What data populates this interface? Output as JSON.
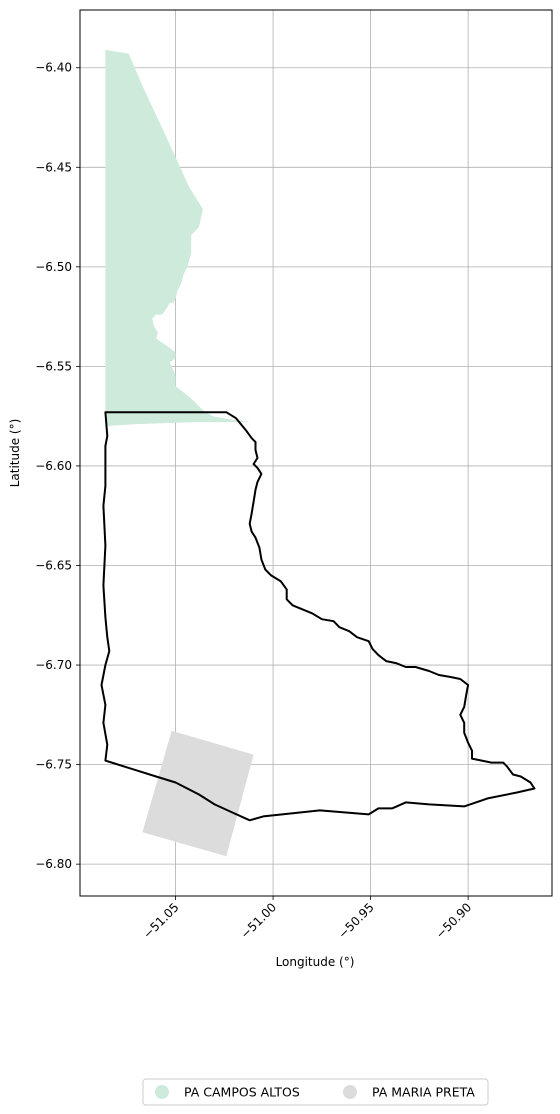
{
  "chart_data": {
    "type": "map",
    "xlabel": "Longitude (°)",
    "ylabel": "Latitude (°)",
    "xlim": [
      -51.099,
      -50.857
    ],
    "ylim": [
      -6.816,
      -6.371
    ],
    "grid": true,
    "legend_position": "bottom-center",
    "x_ticks": [
      {
        "value": -51.05,
        "label": "−51.05"
      },
      {
        "value": -51.0,
        "label": "−51.00"
      },
      {
        "value": -50.95,
        "label": "−50.95"
      },
      {
        "value": -50.9,
        "label": "−50.90"
      }
    ],
    "y_ticks": [
      {
        "value": -6.4,
        "label": "−6.40"
      },
      {
        "value": -6.45,
        "label": "−6.45"
      },
      {
        "value": -6.5,
        "label": "−6.50"
      },
      {
        "value": -6.55,
        "label": "−6.55"
      },
      {
        "value": -6.6,
        "label": "−6.60"
      },
      {
        "value": -6.65,
        "label": "−6.65"
      },
      {
        "value": -6.7,
        "label": "−6.70"
      },
      {
        "value": -6.75,
        "label": "−6.75"
      },
      {
        "value": -6.8,
        "label": "−6.80"
      }
    ],
    "areas": [
      {
        "name": "PA CAMPOS ALTOS",
        "color": "#cdeadb",
        "coords": [
          [
            -51.086,
            -6.391
          ],
          [
            -51.08,
            -6.392
          ],
          [
            -51.074,
            -6.393
          ],
          [
            -51.067,
            -6.409
          ],
          [
            -51.058,
            -6.428
          ],
          [
            -51.05,
            -6.445
          ],
          [
            -51.043,
            -6.46
          ],
          [
            -51.036,
            -6.471
          ],
          [
            -51.038,
            -6.48
          ],
          [
            -51.042,
            -6.484
          ],
          [
            -51.042,
            -6.493
          ],
          [
            -51.044,
            -6.5
          ],
          [
            -51.046,
            -6.504
          ],
          [
            -51.047,
            -6.508
          ],
          [
            -51.049,
            -6.512
          ],
          [
            -51.05,
            -6.516
          ],
          [
            -51.051,
            -6.518
          ],
          [
            -51.053,
            -6.518
          ],
          [
            -51.054,
            -6.52
          ],
          [
            -51.057,
            -6.524
          ],
          [
            -51.06,
            -6.524
          ],
          [
            -51.062,
            -6.526
          ],
          [
            -51.061,
            -6.53
          ],
          [
            -51.059,
            -6.533
          ],
          [
            -51.06,
            -6.536
          ],
          [
            -51.057,
            -6.538
          ],
          [
            -51.054,
            -6.54
          ],
          [
            -51.05,
            -6.543
          ],
          [
            -51.05,
            -6.546
          ],
          [
            -51.053,
            -6.548
          ],
          [
            -51.052,
            -6.55
          ],
          [
            -51.05,
            -6.555
          ],
          [
            -51.05,
            -6.56
          ],
          [
            -51.046,
            -6.563
          ],
          [
            -51.041,
            -6.567
          ],
          [
            -51.036,
            -6.572
          ],
          [
            -51.031,
            -6.575
          ],
          [
            -51.02,
            -6.577
          ],
          [
            -51.011,
            -6.578
          ],
          [
            -51.04,
            -6.578
          ],
          [
            -51.07,
            -6.579
          ],
          [
            -51.086,
            -6.58
          ]
        ]
      },
      {
        "name": "PA MARIA PRETA",
        "color": "#dcdcdc",
        "coords": [
          [
            -51.052,
            -6.733
          ],
          [
            -51.01,
            -6.745
          ],
          [
            -51.024,
            -6.796
          ],
          [
            -51.067,
            -6.784
          ]
        ]
      }
    ],
    "outline": {
      "color": "#000000",
      "coords": [
        [
          -51.086,
          -6.573
        ],
        [
          -51.054,
          -6.573
        ],
        [
          -51.024,
          -6.573
        ],
        [
          -51.019,
          -6.576
        ],
        [
          -51.014,
          -6.582
        ],
        [
          -51.011,
          -6.586
        ],
        [
          -51.009,
          -6.588
        ],
        [
          -51.009,
          -6.592
        ],
        [
          -51.008,
          -6.596
        ],
        [
          -51.01,
          -6.599
        ],
        [
          -51.008,
          -6.601
        ],
        [
          -51.006,
          -6.604
        ],
        [
          -51.008,
          -6.608
        ],
        [
          -51.009,
          -6.612
        ],
        [
          -51.01,
          -6.618
        ],
        [
          -51.011,
          -6.624
        ],
        [
          -51.012,
          -6.629
        ],
        [
          -51.011,
          -6.633
        ],
        [
          -51.009,
          -6.636
        ],
        [
          -51.007,
          -6.641
        ],
        [
          -51.006,
          -6.647
        ],
        [
          -51.004,
          -6.652
        ],
        [
          -51.001,
          -6.655
        ],
        [
          -50.996,
          -6.658
        ],
        [
          -50.993,
          -6.662
        ],
        [
          -50.993,
          -6.667
        ],
        [
          -50.99,
          -6.67
        ],
        [
          -50.985,
          -6.672
        ],
        [
          -50.98,
          -6.674
        ],
        [
          -50.975,
          -6.677
        ],
        [
          -50.969,
          -6.678
        ],
        [
          -50.966,
          -6.681
        ],
        [
          -50.961,
          -6.683
        ],
        [
          -50.957,
          -6.686
        ],
        [
          -50.951,
          -6.688
        ],
        [
          -50.949,
          -6.692
        ],
        [
          -50.946,
          -6.695
        ],
        [
          -50.942,
          -6.698
        ],
        [
          -50.937,
          -6.699
        ],
        [
          -50.932,
          -6.701
        ],
        [
          -50.927,
          -6.701
        ],
        [
          -50.92,
          -6.703
        ],
        [
          -50.915,
          -6.705
        ],
        [
          -50.909,
          -6.706
        ],
        [
          -50.904,
          -6.707
        ],
        [
          -50.9,
          -6.71
        ],
        [
          -50.901,
          -6.715
        ],
        [
          -50.902,
          -6.721
        ],
        [
          -50.904,
          -6.725
        ],
        [
          -50.902,
          -6.729
        ],
        [
          -50.902,
          -6.734
        ],
        [
          -50.9,
          -6.739
        ],
        [
          -50.898,
          -6.743
        ],
        [
          -50.898,
          -6.747
        ],
        [
          -50.893,
          -6.748
        ],
        [
          -50.888,
          -6.749
        ],
        [
          -50.882,
          -6.749
        ],
        [
          -50.88,
          -6.751
        ],
        [
          -50.877,
          -6.755
        ],
        [
          -50.873,
          -6.756
        ],
        [
          -50.868,
          -6.759
        ],
        [
          -50.866,
          -6.762
        ],
        [
          -50.875,
          -6.764
        ],
        [
          -50.89,
          -6.767
        ],
        [
          -50.902,
          -6.771
        ],
        [
          -50.92,
          -6.77
        ],
        [
          -50.932,
          -6.769
        ],
        [
          -50.939,
          -6.772
        ],
        [
          -50.946,
          -6.772
        ],
        [
          -50.951,
          -6.775
        ],
        [
          -50.976,
          -6.773
        ],
        [
          -51.005,
          -6.776
        ],
        [
          -51.012,
          -6.778
        ],
        [
          -51.021,
          -6.774
        ],
        [
          -51.03,
          -6.77
        ],
        [
          -51.038,
          -6.765
        ],
        [
          -51.05,
          -6.759
        ],
        [
          -51.06,
          -6.756
        ],
        [
          -51.086,
          -6.748
        ],
        [
          -51.085,
          -6.74
        ],
        [
          -51.087,
          -6.729
        ],
        [
          -51.086,
          -6.72
        ],
        [
          -51.088,
          -6.71
        ],
        [
          -51.086,
          -6.7
        ],
        [
          -51.084,
          -6.693
        ],
        [
          -51.085,
          -6.686
        ],
        [
          -51.086,
          -6.676
        ],
        [
          -51.087,
          -6.66
        ],
        [
          -51.086,
          -6.64
        ],
        [
          -51.087,
          -6.62
        ],
        [
          -51.086,
          -6.61
        ],
        [
          -51.086,
          -6.59
        ],
        [
          -51.085,
          -6.585
        ],
        [
          -51.086,
          -6.573
        ]
      ]
    }
  },
  "legend": {
    "items": [
      {
        "label": "PA CAMPOS ALTOS",
        "color": "#cdeadb"
      },
      {
        "label": "PA MARIA PRETA",
        "color": "#dcdcdc"
      }
    ]
  }
}
